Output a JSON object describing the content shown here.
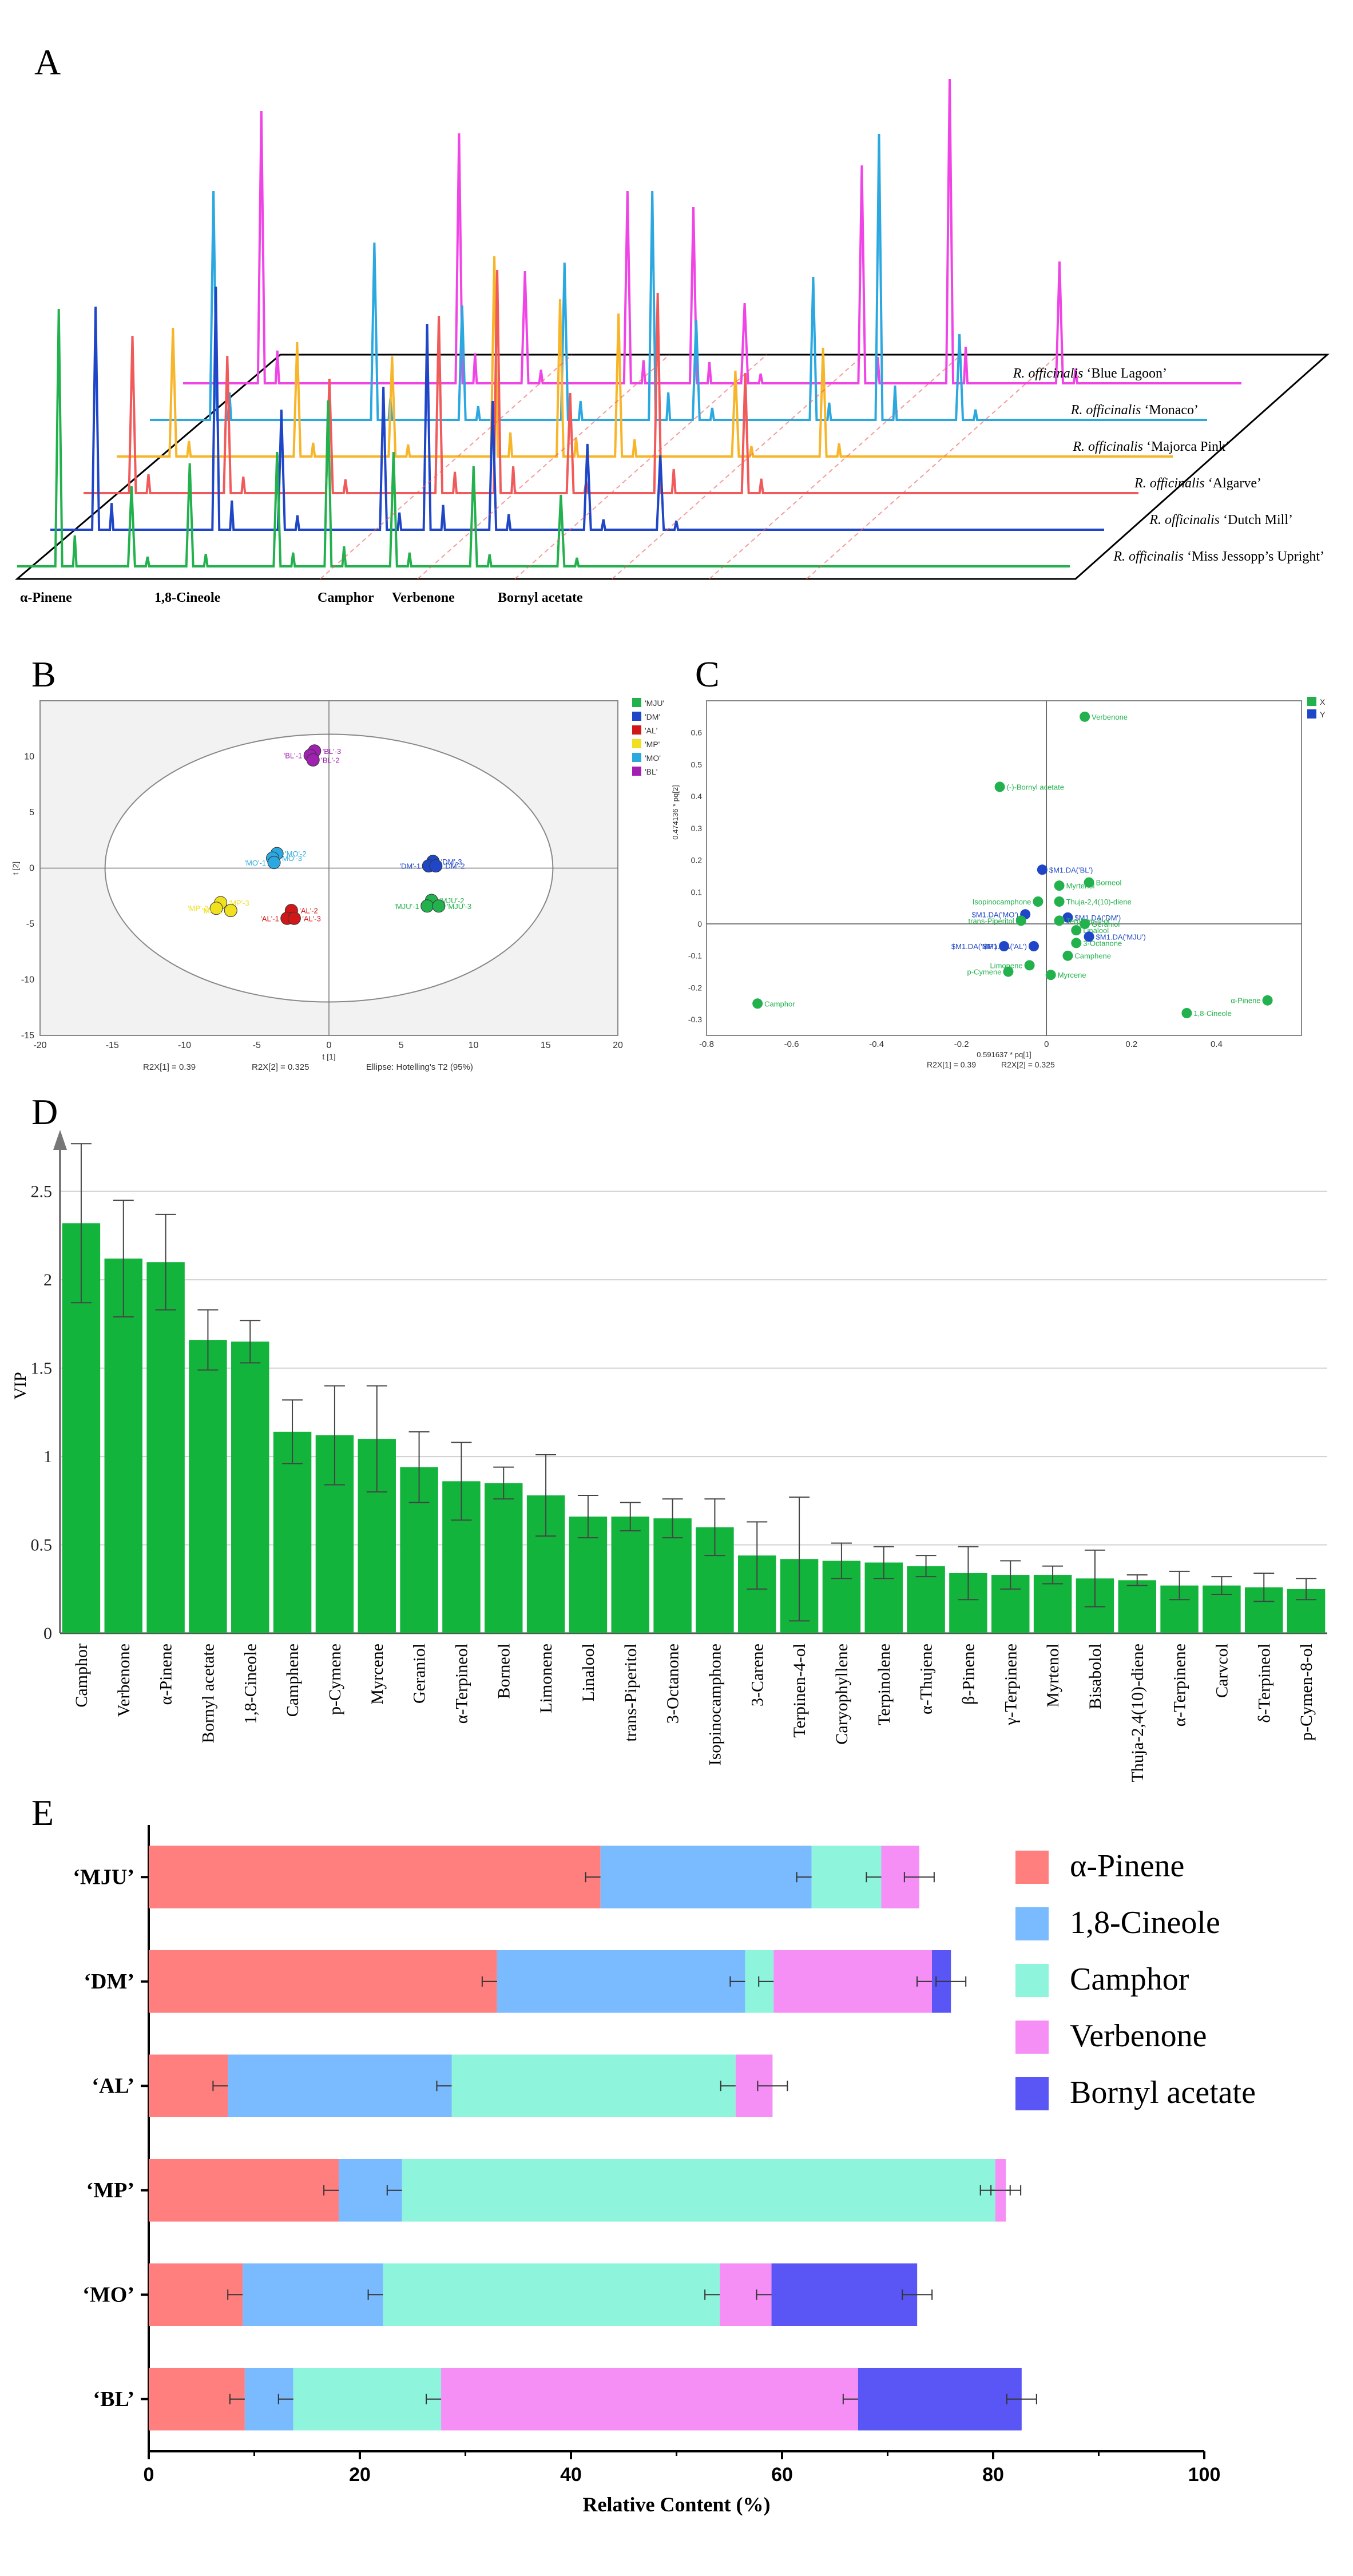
{
  "panels": {
    "A": "A",
    "B": "B",
    "C": "C",
    "D": "D",
    "E": "E"
  },
  "colors": {
    "green": "#22b14c",
    "blue": "#2046c8",
    "red": "#f05a5a",
    "orange": "#f7b52a",
    "cyan": "#2ba8e0",
    "magenta": "#f045e6",
    "e_pinene": "#ff7f7f",
    "e_cineole": "#7abaff",
    "e_camphor": "#8ef5dc",
    "e_verbenone": "#f58ff5",
    "e_bornyl": "#5a55f5",
    "vip_bar": "#12b43c"
  },
  "panel_a": {
    "traces": [
      {
        "genus": "R. officinalis",
        "cultivar": "‘Blue Lagoon’",
        "color": "#f045e6"
      },
      {
        "genus": "R. officinalis",
        "cultivar": "‘Monaco’",
        "color": "#2ba8e0"
      },
      {
        "genus": "R. officinalis",
        "cultivar": "‘Majorca Pink’",
        "color": "#f7b52a"
      },
      {
        "genus": "R. officinalis",
        "cultivar": "‘Algarve’",
        "color": "#f05a5a"
      },
      {
        "genus": "R. officinalis",
        "cultivar": "‘Dutch Mill’",
        "color": "#2046c8"
      },
      {
        "genus": "R. officinalis",
        "cultivar": "‘Miss Jessopp’s Upright’",
        "color": "#22b14c"
      }
    ],
    "compound_labels": [
      "α-Pinene",
      "1,8-Cineole",
      "Camphor",
      "Verbenone",
      "Bornyl acetate"
    ]
  },
  "chart_data": [
    {
      "type": "scatter",
      "panel": "B",
      "xlim": [
        -20,
        20
      ],
      "ylim": [
        -15,
        15
      ],
      "xticks": [
        -20,
        -15,
        -10,
        -5,
        0,
        5,
        10,
        15,
        20
      ],
      "yticks": [
        -15,
        -10,
        -5,
        0,
        5,
        10
      ],
      "xlabel": "t [1]",
      "ylabel": "t [2]",
      "footer": [
        "R2X[1] = 0.39",
        "R2X[2] = 0.325",
        "Ellipse: Hotelling's T2 (95%)"
      ],
      "legend": [
        {
          "label": "'MJU'",
          "color": "#22b14c"
        },
        {
          "label": "'DM'",
          "color": "#2046c8"
        },
        {
          "label": "'AL'",
          "color": "#d01818"
        },
        {
          "label": "'MP'",
          "color": "#f0e020"
        },
        {
          "label": "'MO'",
          "color": "#2ba8e0"
        },
        {
          "label": "'BL'",
          "color": "#a020b0"
        }
      ],
      "points": [
        {
          "label": "'BL'-3",
          "x": -1.0,
          "y": 10.5,
          "color": "#a020b0"
        },
        {
          "label": "'BL'-1",
          "x": -1.3,
          "y": 10.1,
          "color": "#a020b0"
        },
        {
          "label": "'BL'-2",
          "x": -1.1,
          "y": 9.7,
          "color": "#a020b0"
        },
        {
          "label": "'MO'-2",
          "x": -3.6,
          "y": 1.3,
          "color": "#2ba8e0"
        },
        {
          "label": "'MO'-3",
          "x": -3.9,
          "y": 0.9,
          "color": "#2ba8e0"
        },
        {
          "label": "'MO'-1",
          "x": -3.8,
          "y": 0.5,
          "color": "#2ba8e0"
        },
        {
          "label": "'DM'-3",
          "x": 7.2,
          "y": 0.6,
          "color": "#2046c8"
        },
        {
          "label": "'DM'-1",
          "x": 6.9,
          "y": 0.2,
          "color": "#2046c8"
        },
        {
          "label": "'DM'-2",
          "x": 7.4,
          "y": 0.2,
          "color": "#2046c8"
        },
        {
          "label": "'AL'-2",
          "x": -2.6,
          "y": -3.8,
          "color": "#d01818"
        },
        {
          "label": "'AL'-1",
          "x": -2.9,
          "y": -4.5,
          "color": "#d01818"
        },
        {
          "label": "'AL'-3",
          "x": -2.4,
          "y": -4.5,
          "color": "#d01818"
        },
        {
          "label": "'MP'-3",
          "x": -7.5,
          "y": -3.1,
          "color": "#f0e020"
        },
        {
          "label": "'MP'-2",
          "x": -7.8,
          "y": -3.6,
          "color": "#f0e020"
        },
        {
          "label": "'MP'-1",
          "x": -6.8,
          "y": -3.8,
          "color": "#f0e020"
        },
        {
          "label": "'MJU'-2",
          "x": 7.1,
          "y": -2.9,
          "color": "#22b14c"
        },
        {
          "label": "'MJU'-1",
          "x": 6.8,
          "y": -3.4,
          "color": "#22b14c"
        },
        {
          "label": "'MJU'-3",
          "x": 7.6,
          "y": -3.4,
          "color": "#22b14c"
        }
      ]
    },
    {
      "type": "scatter",
      "panel": "C",
      "xlim": [
        -0.8,
        0.6
      ],
      "ylim": [
        -0.35,
        0.7
      ],
      "xticks": [
        -0.8,
        -0.6,
        -0.4,
        -0.2,
        0,
        0.2,
        0.4
      ],
      "yticks": [
        -0.3,
        -0.2,
        -0.1,
        0,
        0.1,
        0.2,
        0.3,
        0.4,
        0.5,
        0.6
      ],
      "xlabel": "0.591637 * pq[1]",
      "ylabel": "0.474136 * pq[2]",
      "footer": [
        "R2X[1] = 0.39",
        "R2X[2] = 0.325"
      ],
      "legend": [
        {
          "label": "X",
          "color": "#22b14c"
        },
        {
          "label": "Y",
          "color": "#2046c8"
        }
      ],
      "points": [
        {
          "label": "Verbenone",
          "x": 0.09,
          "y": 0.65,
          "color": "#22b14c"
        },
        {
          "label": "(-)-Bornyl acetate",
          "x": -0.11,
          "y": 0.43,
          "color": "#22b14c"
        },
        {
          "label": "$M1.DA('BL')",
          "x": -0.01,
          "y": 0.17,
          "color": "#2046c8"
        },
        {
          "label": "Borneol",
          "x": 0.1,
          "y": 0.13,
          "color": "#22b14c"
        },
        {
          "label": "Myrtenol",
          "x": 0.03,
          "y": 0.12,
          "color": "#22b14c"
        },
        {
          "label": "Isopinocamphone",
          "x": -0.02,
          "y": 0.07,
          "color": "#22b14c"
        },
        {
          "label": "Thuja-2,4(10)-diene",
          "x": 0.03,
          "y": 0.07,
          "color": "#22b14c"
        },
        {
          "label": "$M1.DA('MO')",
          "x": -0.05,
          "y": 0.03,
          "color": "#2046c8"
        },
        {
          "label": "$M1.DA('DM')",
          "x": 0.05,
          "y": 0.02,
          "color": "#2046c8"
        },
        {
          "label": "trans-Piperitol",
          "x": -0.06,
          "y": 0.01,
          "color": "#22b14c"
        },
        {
          "label": "Terpinen-4-ol",
          "x": 0.03,
          "y": 0.01,
          "color": "#22b14c"
        },
        {
          "label": "Linalool",
          "x": 0.07,
          "y": -0.02,
          "color": "#22b14c"
        },
        {
          "label": "Geraniol",
          "x": 0.09,
          "y": 0.0,
          "color": "#22b14c"
        },
        {
          "label": "$M1.DA('MJU')",
          "x": 0.1,
          "y": -0.04,
          "color": "#2046c8"
        },
        {
          "label": "3-Octanone",
          "x": 0.07,
          "y": -0.06,
          "color": "#22b14c"
        },
        {
          "label": "$M1.DA('AL')",
          "x": -0.03,
          "y": -0.07,
          "color": "#2046c8"
        },
        {
          "label": "$M1.DA('MP')",
          "x": -0.1,
          "y": -0.07,
          "color": "#2046c8"
        },
        {
          "label": "Camphene",
          "x": 0.05,
          "y": -0.1,
          "color": "#22b14c"
        },
        {
          "label": "Limonene",
          "x": -0.04,
          "y": -0.13,
          "color": "#22b14c"
        },
        {
          "label": "Myrcene",
          "x": 0.01,
          "y": -0.16,
          "color": "#22b14c"
        },
        {
          "label": "p-Cymene",
          "x": -0.09,
          "y": -0.15,
          "color": "#22b14c"
        },
        {
          "label": "Camphor",
          "x": -0.68,
          "y": -0.25,
          "color": "#22b14c"
        },
        {
          "label": "α-Pinene",
          "x": 0.52,
          "y": -0.24,
          "color": "#22b14c"
        },
        {
          "label": "1,8-Cineole",
          "x": 0.33,
          "y": -0.28,
          "color": "#22b14c"
        }
      ]
    },
    {
      "type": "bar",
      "panel": "D",
      "ylabel": "VIP",
      "ylim": [
        0,
        2.8
      ],
      "yticks": [
        0,
        0.5,
        1,
        1.5,
        2,
        2.5
      ],
      "categories": [
        "Camphor",
        "Verbenone",
        "α-Pinene",
        "Bornyl acetate",
        "1,8-Cineole",
        "Camphene",
        "p-Cymene",
        "Myrcene",
        "Geraniol",
        "α-Terpineol",
        "Borneol",
        "Limonene",
        "Linalool",
        "trans-Piperitol",
        "3-Octanone",
        "Isopinocamphone",
        "3-Carene",
        "Terpinen-4-ol",
        "Caryophyllene",
        "Terpinolene",
        "α-Thujene",
        "β-Pinene",
        "γ-Terpinene",
        "Myrtenol",
        "Bisabolol",
        "Thuja-2,4(10)-diene",
        "α-Terpinene",
        "Carvcol",
        "δ-Terpineol",
        "p-Cymen-8-ol"
      ],
      "values": [
        2.32,
        2.12,
        2.1,
        1.66,
        1.65,
        1.14,
        1.12,
        1.1,
        0.94,
        0.86,
        0.85,
        0.78,
        0.66,
        0.66,
        0.65,
        0.6,
        0.44,
        0.42,
        0.41,
        0.4,
        0.38,
        0.34,
        0.33,
        0.33,
        0.31,
        0.3,
        0.27,
        0.27,
        0.26,
        0.25
      ],
      "errors": [
        0.45,
        0.33,
        0.27,
        0.17,
        0.12,
        0.18,
        0.28,
        0.3,
        0.2,
        0.22,
        0.09,
        0.23,
        0.12,
        0.08,
        0.11,
        0.16,
        0.19,
        0.35,
        0.1,
        0.09,
        0.06,
        0.15,
        0.08,
        0.05,
        0.16,
        0.03,
        0.08,
        0.05,
        0.08,
        0.06
      ]
    },
    {
      "type": "bar",
      "orientation": "horizontal-stacked",
      "panel": "E",
      "xlabel": "Relative Content (%)",
      "xlim": [
        0,
        100
      ],
      "xticks": [
        0,
        20,
        40,
        60,
        80,
        100
      ],
      "categories": [
        "‘MJU’",
        "‘DM’",
        "‘AL’",
        "‘MP’",
        "‘MO’",
        "‘BL’"
      ],
      "series": [
        {
          "name": "α-Pinene",
          "color": "#ff7f7f",
          "values": [
            42.8,
            33.0,
            7.5,
            18.0,
            8.9,
            9.1
          ]
        },
        {
          "name": "1,8-Cineole",
          "color": "#7abaff",
          "values": [
            20.0,
            23.5,
            21.2,
            6.0,
            13.3,
            4.6
          ]
        },
        {
          "name": "Camphor",
          "color": "#8ef5dc",
          "values": [
            6.6,
            2.7,
            26.9,
            56.2,
            31.9,
            14.0
          ]
        },
        {
          "name": "Verbenone",
          "color": "#f58ff5",
          "values": [
            3.6,
            15.0,
            3.5,
            1.0,
            4.9,
            39.5
          ]
        },
        {
          "name": "Bornyl acetate",
          "color": "#5a55f5",
          "values": [
            0,
            1.8,
            0,
            0,
            13.8,
            15.5
          ]
        }
      ]
    }
  ]
}
